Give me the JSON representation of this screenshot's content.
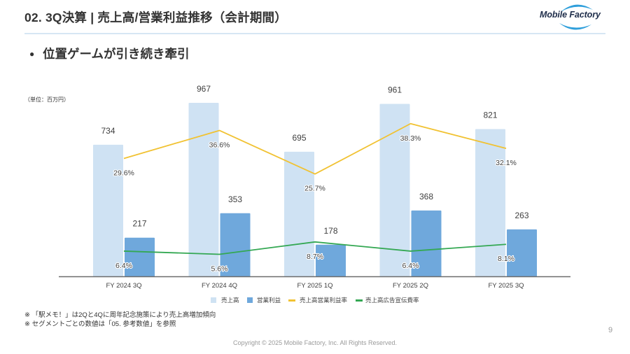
{
  "header": {
    "title": "02. 3Q決算 | 売上高/営業利益推移（会計期間）",
    "logo_text": "Mobile Factory"
  },
  "bullet": {
    "icon": "bullet-dot-icon",
    "symbol": "●",
    "text": "位置ゲームが引き続き牽引"
  },
  "notes": [
    "※ 「駅メモ！」は2Qと4Qに周年記念施策により売上高増加傾向",
    "※ セグメントごとの数値は「05. 参考数値」を参照"
  ],
  "footer": {
    "copyright": "Copyright © 2025 Mobile Factory, Inc. All Rights Reserved.",
    "page_number": "9"
  },
  "colors": {
    "title_rule": "#d6e6f4",
    "logo_swoosh": "#2f9fdb",
    "axis": "#6b6b6b"
  },
  "chart_data": {
    "type": "bar",
    "unit": "（単位：百万円）",
    "title": "",
    "xlabel": "",
    "ylabel": "",
    "ylim": [
      0,
      1000
    ],
    "y2lim": [
      0,
      45
    ],
    "grid": false,
    "legend_position": "bottom",
    "categories": [
      "FY 2024 3Q",
      "FY 2024 4Q",
      "FY 2025 1Q",
      "FY 2025 2Q",
      "FY 2025 3Q"
    ],
    "series": [
      {
        "name": "売上高",
        "kind": "bar",
        "axis": "primary",
        "color": "#cfe2f3",
        "values": [
          734,
          967,
          695,
          961,
          821
        ],
        "labels": [
          "734",
          "967",
          "695",
          "961",
          "821"
        ]
      },
      {
        "name": "営業利益",
        "kind": "bar",
        "axis": "primary",
        "color": "#6fa8dc",
        "values": [
          217,
          353,
          178,
          368,
          263
        ],
        "labels": [
          "217",
          "353",
          "178",
          "368",
          "263"
        ]
      },
      {
        "name": "売上高営業利益率",
        "kind": "line",
        "axis": "secondary",
        "unit": "%",
        "color": "#f1c232",
        "values": [
          29.6,
          36.6,
          25.7,
          38.3,
          32.1
        ],
        "labels": [
          "29.6%",
          "36.6%",
          "25.7%",
          "38.3%",
          "32.1%"
        ]
      },
      {
        "name": "売上高広告宣伝費率",
        "kind": "line",
        "axis": "secondary",
        "unit": "%",
        "color": "#34a853",
        "values": [
          6.4,
          5.6,
          8.7,
          6.4,
          8.1
        ],
        "labels": [
          "6.4%",
          "5.6%",
          "8.7%",
          "6.4%",
          "8.1%"
        ]
      }
    ]
  }
}
